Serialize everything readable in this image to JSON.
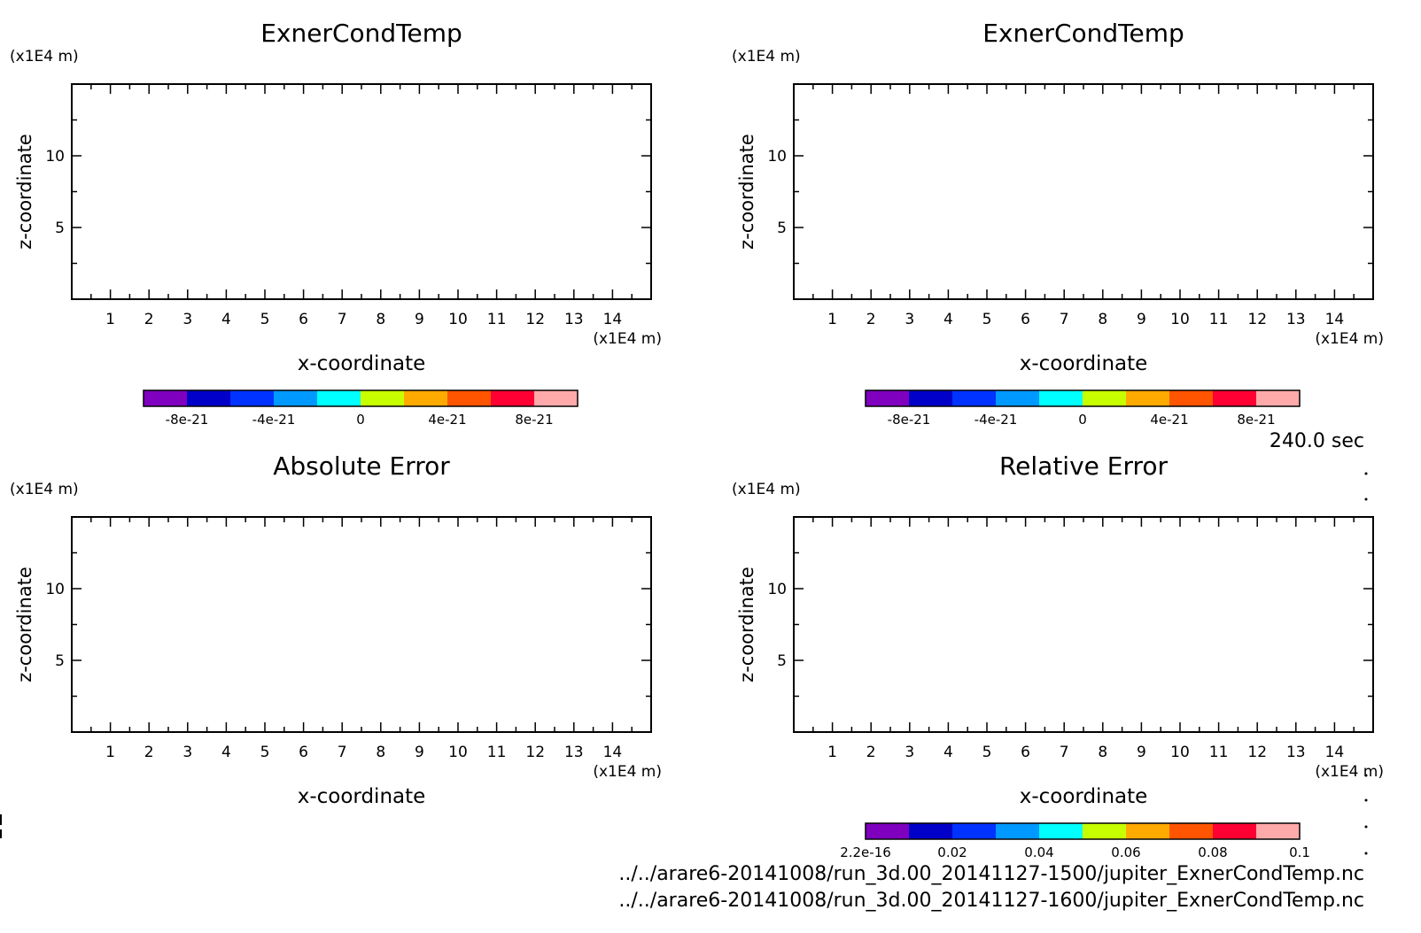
{
  "page": {
    "time_label": "240.0 sec",
    "file_lines": [
      "../../arare6-20141008/run_3d.00_20141127-1500/jupiter_ExnerCondTemp.nc",
      "../../arare6-20141008/run_3d.00_20141127-1600/jupiter_ExnerCondTemp.nc"
    ]
  },
  "chart_data": [
    {
      "type": "heatmap",
      "title": "ExnerCondTemp",
      "xlabel": "x-coordinate",
      "ylabel": "z-coordinate",
      "x_unit": "(x1E4 m)",
      "y_unit": "(x1E4 m)",
      "xlim": [
        0,
        15
      ],
      "ylim": [
        0,
        15
      ],
      "x_ticks": [
        1,
        2,
        3,
        4,
        5,
        6,
        7,
        8,
        9,
        10,
        11,
        12,
        13,
        14
      ],
      "y_ticks": [
        5,
        10
      ],
      "values": [],
      "colorbar": {
        "colors": [
          "#7f00bf",
          "#0000c8",
          "#0033ff",
          "#0099ff",
          "#00ffff",
          "#c8ff00",
          "#ffaa00",
          "#ff5500",
          "#ff0033",
          "#ffaaaa"
        ],
        "tick_labels": [
          "-8e-21",
          "-4e-21",
          "0",
          "4e-21",
          "8e-21"
        ]
      }
    },
    {
      "type": "heatmap",
      "title": "ExnerCondTemp",
      "xlabel": "x-coordinate",
      "ylabel": "z-coordinate",
      "x_unit": "(x1E4 m)",
      "y_unit": "(x1E4 m)",
      "xlim": [
        0,
        15
      ],
      "ylim": [
        0,
        15
      ],
      "x_ticks": [
        1,
        2,
        3,
        4,
        5,
        6,
        7,
        8,
        9,
        10,
        11,
        12,
        13,
        14
      ],
      "y_ticks": [
        5,
        10
      ],
      "values": [],
      "colorbar": {
        "colors": [
          "#7f00bf",
          "#0000c8",
          "#0033ff",
          "#0099ff",
          "#00ffff",
          "#c8ff00",
          "#ffaa00",
          "#ff5500",
          "#ff0033",
          "#ffaaaa"
        ],
        "tick_labels": [
          "-8e-21",
          "-4e-21",
          "0",
          "4e-21",
          "8e-21"
        ]
      }
    },
    {
      "type": "heatmap",
      "title": "Absolute Error",
      "xlabel": "x-coordinate",
      "ylabel": "z-coordinate",
      "x_unit": "(x1E4 m)",
      "y_unit": "(x1E4 m)",
      "xlim": [
        0,
        15
      ],
      "ylim": [
        0,
        15
      ],
      "x_ticks": [
        1,
        2,
        3,
        4,
        5,
        6,
        7,
        8,
        9,
        10,
        11,
        12,
        13,
        14
      ],
      "y_ticks": [
        5,
        10
      ],
      "values": []
    },
    {
      "type": "heatmap",
      "title": "Relative Error",
      "xlabel": "x-coordinate",
      "ylabel": "z-coordinate",
      "x_unit": "(x1E4 m)",
      "y_unit": "(x1E4 m)",
      "xlim": [
        0,
        15
      ],
      "ylim": [
        0,
        15
      ],
      "x_ticks": [
        1,
        2,
        3,
        4,
        5,
        6,
        7,
        8,
        9,
        10,
        11,
        12,
        13,
        14
      ],
      "y_ticks": [
        5,
        10
      ],
      "values": [],
      "colorbar": {
        "colors": [
          "#7f00bf",
          "#0000c8",
          "#0033ff",
          "#0099ff",
          "#00ffff",
          "#c8ff00",
          "#ffaa00",
          "#ff5500",
          "#ff0033",
          "#ffaaaa"
        ],
        "tick_labels": [
          "2.2e-16",
          "0.02",
          "0.04",
          "0.06",
          "0.08",
          "0.1"
        ]
      }
    }
  ]
}
